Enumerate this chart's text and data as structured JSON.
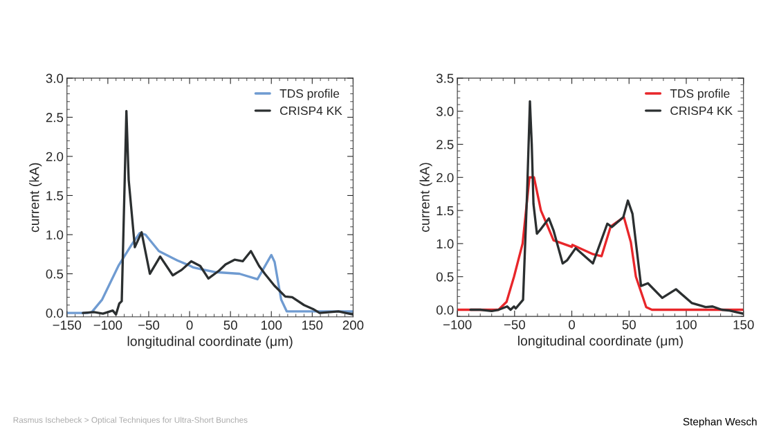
{
  "chart_data": [
    {
      "type": "line",
      "xlabel": "longitudinal coordinate (μm)",
      "ylabel": "current (kA)",
      "xlim": [
        -150,
        200
      ],
      "xticks": [
        {
          "value": -150,
          "label": "−150"
        },
        {
          "value": -100,
          "label": "−100"
        },
        {
          "value": -50,
          "label": "−50"
        },
        0,
        50,
        100,
        150,
        200
      ],
      "ylim": [
        -0.05,
        3.0
      ],
      "yticks": [
        {
          "value": 0,
          "label": "0.0"
        },
        0.5,
        {
          "value": 1,
          "label": "1.0"
        },
        1.5,
        {
          "value": 2,
          "label": "2.0"
        },
        2.5,
        {
          "value": 3,
          "label": "3.0"
        }
      ],
      "legend": "top right",
      "grid": false,
      "series": [
        {
          "name": "TDS profile",
          "color": "#6f9bd1",
          "x": [
            -150,
            -125,
            -119.6,
            -107,
            -86.6,
            -71,
            -61,
            -54,
            -37.6,
            -15,
            -1,
            4.7,
            13,
            32.6,
            61,
            83,
            100,
            104,
            112,
            118.8,
            200
          ],
          "values": [
            0,
            0,
            0.01,
            0.17,
            0.61,
            0.87,
            1.02,
            1.0,
            0.79,
            0.67,
            0.61,
            0.58,
            0.56,
            0.52,
            0.5,
            0.43,
            0.74,
            0.65,
            0.17,
            0.02,
            0.02
          ]
        },
        {
          "name": "CRISP4 KK",
          "color": "#2b2f30",
          "x": [
            -130.5,
            -117,
            -106,
            -94,
            -90,
            -86,
            -83,
            -77.3,
            -74.5,
            -67,
            -58.7,
            -48.6,
            -36,
            -20.6,
            -9.7,
            2,
            13,
            23,
            36,
            44,
            55,
            65,
            75,
            85,
            92,
            103.6,
            117,
            125.5,
            140,
            151,
            159,
            182,
            200
          ],
          "values": [
            0,
            0.01,
            -0.01,
            0.03,
            -0.02,
            0.12,
            0.15,
            2.58,
            1.7,
            0.84,
            1.03,
            0.5,
            0.72,
            0.48,
            0.55,
            0.66,
            0.6,
            0.44,
            0.54,
            0.62,
            0.68,
            0.66,
            0.79,
            0.6,
            0.5,
            0.35,
            0.21,
            0.2,
            0.1,
            0.05,
            0,
            0.02,
            -0.02
          ]
        }
      ],
      "annotations": [
        "Rasmus Ischebeck > Optical Techniques for Ultra-Short Bunches"
      ]
    },
    {
      "type": "line",
      "xlabel": "longitudinal coordinate (μm)",
      "ylabel": "current (kA)",
      "xlim": [
        -100,
        150
      ],
      "xticks": [
        {
          "value": -100,
          "label": "−100"
        },
        {
          "value": -50,
          "label": "−50"
        },
        0,
        50,
        100,
        150
      ],
      "ylim": [
        -0.1,
        3.5
      ],
      "yticks": [
        {
          "value": 0,
          "label": "0.0"
        },
        0.5,
        {
          "value": 1,
          "label": "1.0"
        },
        1.5,
        {
          "value": 2,
          "label": "2.0"
        },
        2.5,
        {
          "value": 3,
          "label": "3.0"
        },
        3.5
      ],
      "legend": "top right",
      "grid": false,
      "series": [
        {
          "name": "TDS profile",
          "color": "#e8262a",
          "x": [
            -100,
            -64,
            -57,
            -50.5,
            -43,
            -37,
            -33,
            -27,
            -22,
            -16,
            0,
            0.5,
            18.5,
            26,
            34,
            45.5,
            51.6,
            56,
            65,
            70,
            150
          ],
          "values": [
            0,
            0,
            0.12,
            0.5,
            1.0,
            2.0,
            2.0,
            1.5,
            1.3,
            1.05,
            0.95,
            0.98,
            0.84,
            0.81,
            1.26,
            1.4,
            1.02,
            0.5,
            0.04,
            0,
            0
          ]
        },
        {
          "name": "CRISP4 KK",
          "color": "#2b2f30",
          "x": [
            -88.5,
            -80,
            -70,
            -64,
            -56.5,
            -53.5,
            -50.5,
            -49,
            -42.6,
            -39,
            -36.6,
            -35,
            -33.5,
            -30.5,
            -27,
            -20,
            -16,
            -8,
            -4,
            3.3,
            18.4,
            31,
            35,
            45,
            49,
            53,
            60.5,
            66.5,
            79,
            91,
            105,
            117,
            123,
            131,
            137,
            150
          ],
          "values": [
            0,
            0,
            -0.02,
            0,
            0.05,
            0,
            0.05,
            0.02,
            0.15,
            1.8,
            3.15,
            2.5,
            1.6,
            1.15,
            1.22,
            1.38,
            1.2,
            0.7,
            0.75,
            0.93,
            0.7,
            1.3,
            1.25,
            1.4,
            1.65,
            1.45,
            0.36,
            0.4,
            0.18,
            0.31,
            0.1,
            0.04,
            0.05,
            0,
            -0.01,
            -0.06
          ]
        }
      ],
      "annotations": [
        "Stephan Wesch"
      ]
    }
  ]
}
